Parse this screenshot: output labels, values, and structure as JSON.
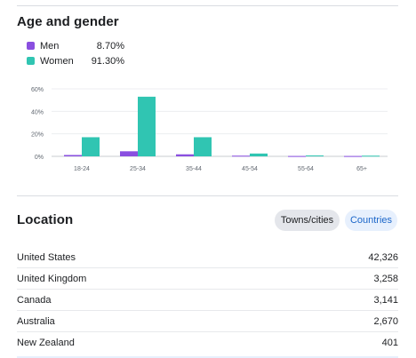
{
  "age_gender": {
    "title": "Age and gender",
    "legend": [
      {
        "name": "Men",
        "value": "8.70%",
        "color": "#8a4fe0"
      },
      {
        "name": "Women",
        "value": "91.30%",
        "color": "#30c5b2"
      }
    ]
  },
  "chart_data": {
    "type": "bar",
    "categories": [
      "18-24",
      "25-34",
      "35-44",
      "45-54",
      "55-64",
      "65+"
    ],
    "series": [
      {
        "name": "Men",
        "color": "#8a4fe0",
        "values": [
          1.2,
          4.5,
          1.8,
          0.6,
          0.3,
          0.3
        ]
      },
      {
        "name": "Women",
        "color": "#30c5b2",
        "values": [
          17,
          53,
          17,
          2.5,
          0.8,
          0.6
        ]
      }
    ],
    "y_ticks": [
      "0%",
      "20%",
      "40%",
      "60%"
    ],
    "ylim": [
      0,
      60
    ],
    "grid": true,
    "xlabel": "",
    "ylabel": ""
  },
  "location": {
    "title": "Location",
    "tabs": [
      {
        "label": "Towns/cities",
        "selected": false
      },
      {
        "label": "Countries",
        "selected": true
      }
    ],
    "rows": [
      {
        "place": "United States",
        "count": "42,326"
      },
      {
        "place": "United Kingdom",
        "count": "3,258"
      },
      {
        "place": "Canada",
        "count": "3,141"
      },
      {
        "place": "Australia",
        "count": "2,670"
      },
      {
        "place": "New Zealand",
        "count": "401"
      }
    ]
  }
}
